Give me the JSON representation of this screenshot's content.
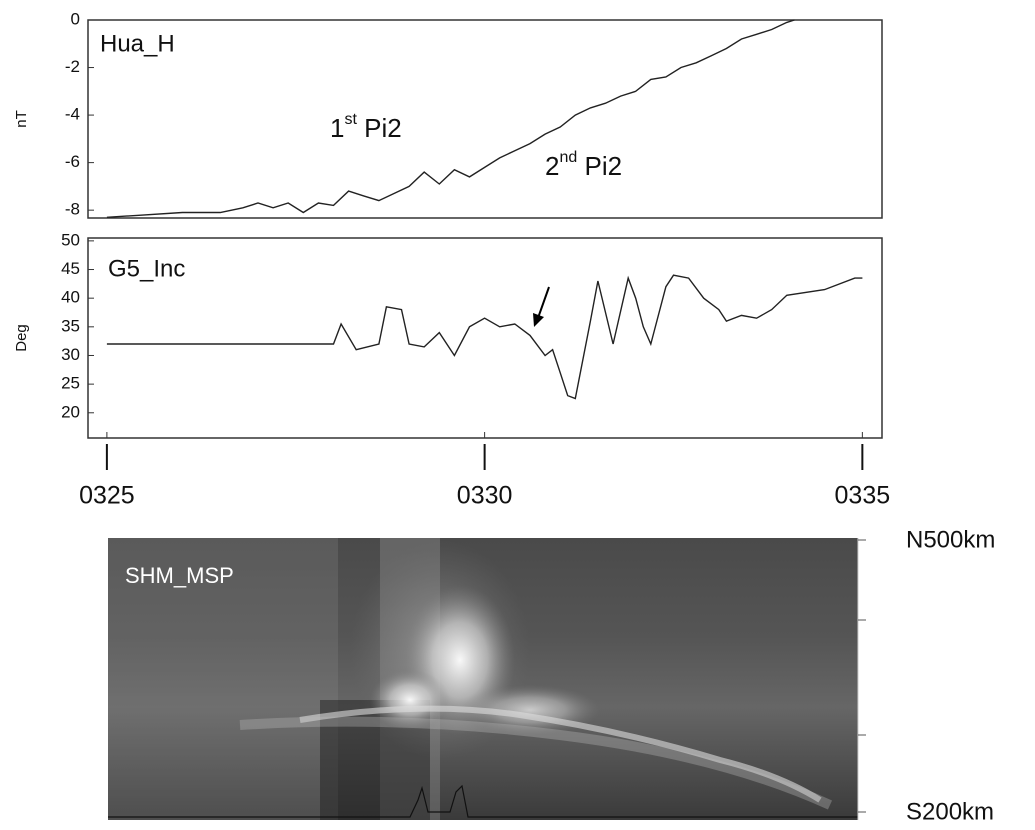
{
  "chart_data": [
    {
      "type": "line",
      "panel_label": "Hua_H",
      "y_label": "nT",
      "annotations": [
        {
          "text": "1",
          "superscript": "st",
          "suffix": " Pi2"
        },
        {
          "text": "2",
          "superscript": "nd",
          "suffix": " Pi2"
        }
      ],
      "x": [
        25.0,
        25.5,
        26.0,
        26.5,
        26.8,
        27.0,
        27.2,
        27.4,
        27.6,
        27.8,
        28.0,
        28.2,
        28.4,
        28.6,
        28.8,
        29.0,
        29.2,
        29.4,
        29.6,
        29.8,
        30.0,
        30.2,
        30.4,
        30.6,
        30.8,
        31.0,
        31.2,
        31.4,
        31.6,
        31.8,
        32.0,
        32.2,
        32.4,
        32.6,
        32.8,
        33.0,
        33.2,
        33.4,
        33.6,
        33.8,
        34.0,
        34.1
      ],
      "values": [
        -8.3,
        -8.2,
        -8.1,
        -8.1,
        -7.9,
        -7.7,
        -7.9,
        -7.7,
        -8.1,
        -7.7,
        -7.8,
        -7.2,
        -7.4,
        -7.6,
        -7.3,
        -7.0,
        -6.4,
        -6.9,
        -6.3,
        -6.6,
        -6.2,
        -5.8,
        -5.5,
        -5.2,
        -4.8,
        -4.5,
        -4.0,
        -3.7,
        -3.5,
        -3.2,
        -3.0,
        -2.5,
        -2.4,
        -2.0,
        -1.8,
        -1.5,
        -1.2,
        -0.8,
        -0.6,
        -0.4,
        -0.1,
        0
      ],
      "color": "#222222",
      "xlim": [
        24.75,
        35.26
      ],
      "ylim": [
        -8.33,
        0
      ],
      "yticks": [
        0,
        -2,
        -4,
        -6,
        -8
      ]
    },
    {
      "type": "line",
      "panel_label": "G5_Inc",
      "y_label": "Deg",
      "x": [
        25.0,
        26.0,
        27.0,
        28.0,
        28.1,
        28.3,
        28.6,
        28.7,
        28.9,
        29.0,
        29.2,
        29.4,
        29.6,
        29.8,
        30.0,
        30.2,
        30.4,
        30.6,
        30.8,
        30.9,
        31.0,
        31.1,
        31.2,
        31.4,
        31.5,
        31.7,
        31.9,
        32.0,
        32.1,
        32.2,
        32.4,
        32.5,
        32.7,
        32.9,
        33.1,
        33.2,
        33.4,
        33.6,
        33.8,
        34.0,
        34.5,
        34.9,
        35.0
      ],
      "values": [
        32,
        32,
        32,
        32,
        35.5,
        31,
        32,
        38.5,
        38,
        32,
        31.5,
        34,
        30,
        35,
        36.5,
        35,
        35.5,
        33.5,
        30,
        31,
        27,
        23,
        22.5,
        36,
        43,
        32,
        43.5,
        40,
        35,
        32,
        42,
        44,
        43.5,
        40,
        38,
        36,
        37,
        36.5,
        38,
        40.5,
        41.5,
        43.5,
        43.5
      ],
      "color": "#222222",
      "xlim": [
        24.75,
        35.26
      ],
      "ylim": [
        15.6,
        50.5
      ],
      "yticks": [
        20,
        25,
        30,
        35,
        40,
        45,
        50
      ],
      "xticks": [
        {
          "value": 25,
          "label": "0325"
        },
        {
          "value": 30,
          "label": "0330"
        },
        {
          "value": 35,
          "label": "0335"
        }
      ]
    }
  ],
  "image_panel": {
    "label": "SHM_MSP",
    "top_label": "N500km",
    "bottom_label": "S200km"
  }
}
